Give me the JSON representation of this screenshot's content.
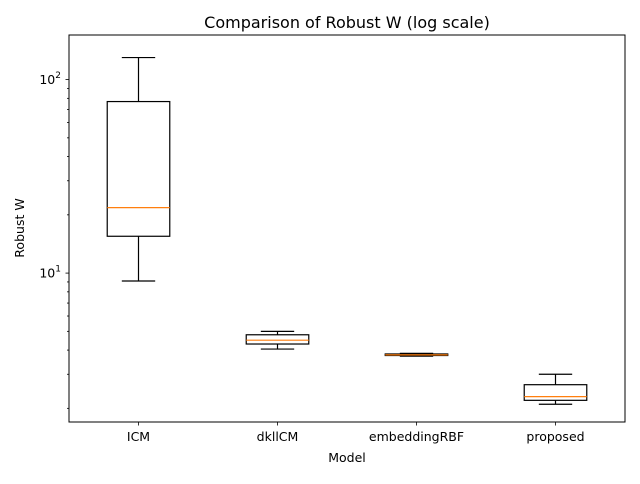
{
  "chart_data": {
    "type": "box",
    "title": "Comparison of Robust W (log scale)",
    "xlabel": "Model",
    "ylabel": "Robust W",
    "yscale": "log",
    "ylim": [
      1.7,
      170
    ],
    "yticks": [
      {
        "value": 10,
        "label": "10",
        "sup": "1"
      },
      {
        "value": 100,
        "label": "10",
        "sup": "2"
      }
    ],
    "grid": false,
    "categories": [
      "ICM",
      "dkllCM",
      "embeddingRBF",
      "proposed"
    ],
    "boxes": [
      {
        "category": "ICM",
        "whisker_low": 9.1,
        "q1": 15.5,
        "median": 21.8,
        "q3": 77,
        "whisker_high": 130
      },
      {
        "category": "dkllCM",
        "whisker_low": 4.05,
        "q1": 4.3,
        "median": 4.5,
        "q3": 4.8,
        "whisker_high": 5.0
      },
      {
        "category": "embeddingRBF",
        "whisker_low": 3.72,
        "q1": 3.75,
        "median": 3.78,
        "q3": 3.82,
        "whisker_high": 3.85
      },
      {
        "category": "proposed",
        "whisker_low": 2.1,
        "q1": 2.2,
        "median": 2.3,
        "q3": 2.65,
        "whisker_high": 3.0
      }
    ],
    "colors": {
      "box": "#000000",
      "median": "#ff7f0e",
      "axis": "#000000"
    }
  }
}
